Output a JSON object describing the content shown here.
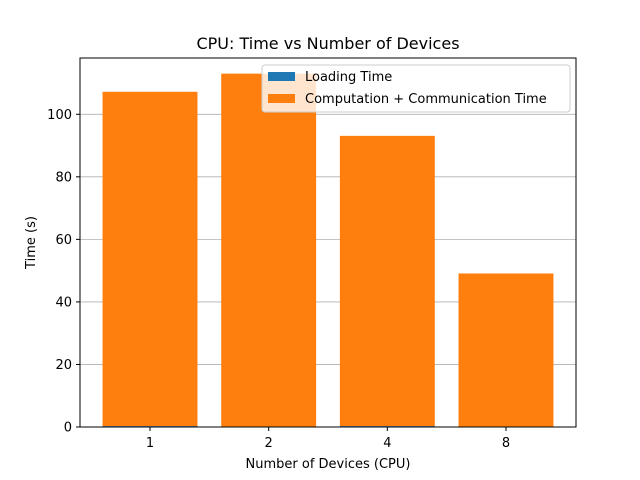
{
  "chart_data": {
    "type": "bar",
    "stacked": true,
    "title": "CPU: Time vs Number of Devices",
    "xlabel": "Number of Devices (CPU)",
    "ylabel": "Time (s)",
    "categories": [
      "1",
      "2",
      "4",
      "8"
    ],
    "series": [
      {
        "name": "Loading Time",
        "values": [
          0.3,
          0.1,
          0.3,
          0.1
        ],
        "color": "#1f77b4"
      },
      {
        "name": "Computation + Communication Time",
        "values": [
          106.9,
          112.9,
          92.8,
          49.0
        ],
        "color": "#ff7f0e"
      }
    ],
    "ylim": [
      0,
      118
    ],
    "yticks": [
      0,
      20,
      40,
      60,
      80,
      100
    ],
    "grid": "y",
    "legend_position": "top-right"
  }
}
